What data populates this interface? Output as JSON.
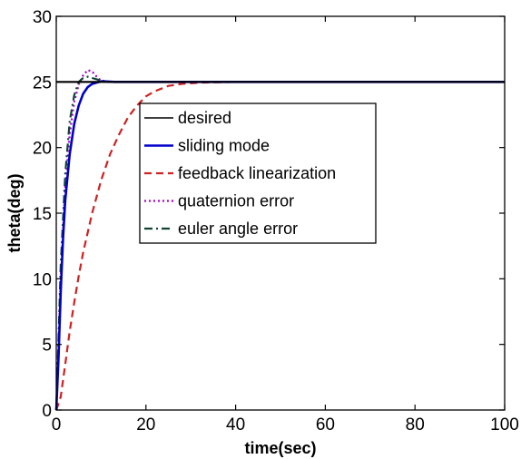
{
  "chart_data": {
    "type": "line",
    "title": "",
    "xlabel": "time(sec)",
    "ylabel": "theta(deg)",
    "xlim": [
      0,
      100
    ],
    "ylim": [
      0,
      30
    ],
    "xticks": [
      0,
      20,
      40,
      60,
      80,
      100
    ],
    "yticks": [
      0,
      5,
      10,
      15,
      20,
      25,
      30
    ],
    "xtick_labels": [
      "0",
      "20",
      "40",
      "60",
      "80",
      "100"
    ],
    "ytick_labels": [
      "0",
      "5",
      "10",
      "15",
      "20",
      "25",
      "30"
    ],
    "grid": false,
    "legend_position": "center-right",
    "series": [
      {
        "name": "desired",
        "color": "#000000",
        "style": "solid",
        "x": [
          0,
          100
        ],
        "y": [
          25,
          25
        ]
      },
      {
        "name": "sliding mode",
        "color": "#0000cc",
        "style": "solid",
        "x": [
          0,
          0.5,
          1,
          1.5,
          2,
          3,
          4,
          5,
          6,
          7,
          8,
          10,
          13,
          20,
          100
        ],
        "y": [
          0,
          4,
          9,
          13,
          16,
          19.5,
          21.8,
          23.2,
          24.1,
          24.6,
          24.85,
          25.05,
          25.0,
          25.0,
          25.0
        ]
      },
      {
        "name": "feedback linearization",
        "color": "#cc2222",
        "style": "dashed",
        "x": [
          0,
          1,
          2,
          3,
          4,
          5,
          6,
          8,
          10,
          12,
          14,
          16,
          18,
          20,
          22,
          25,
          28,
          32,
          40,
          100
        ],
        "y": [
          0,
          1,
          3.5,
          6,
          8.2,
          10.2,
          12,
          15,
          17.5,
          19.5,
          21,
          22.3,
          23.2,
          23.9,
          24.3,
          24.7,
          24.85,
          24.95,
          25.0,
          25.0
        ]
      },
      {
        "name": "quaternion error",
        "color": "#aa00cc",
        "style": "dotted",
        "x": [
          0,
          0.5,
          1,
          2,
          3,
          4,
          5,
          6,
          7,
          8,
          9,
          10,
          12,
          15,
          100
        ],
        "y": [
          0,
          5,
          10,
          17,
          21,
          23.5,
          24.8,
          25.5,
          25.9,
          25.8,
          25.4,
          25.1,
          25.0,
          25.0,
          25.0
        ]
      },
      {
        "name": "euler angle error",
        "color": "#114433",
        "style": "dashdot",
        "x": [
          0,
          0.5,
          1,
          2,
          3,
          4,
          5,
          6,
          7,
          8,
          9,
          10,
          12,
          15,
          100
        ],
        "y": [
          0,
          5.5,
          11,
          18,
          22,
          24,
          25,
          25.3,
          25.4,
          25.3,
          25.2,
          25.1,
          25.0,
          25.0,
          25.0
        ]
      }
    ]
  }
}
